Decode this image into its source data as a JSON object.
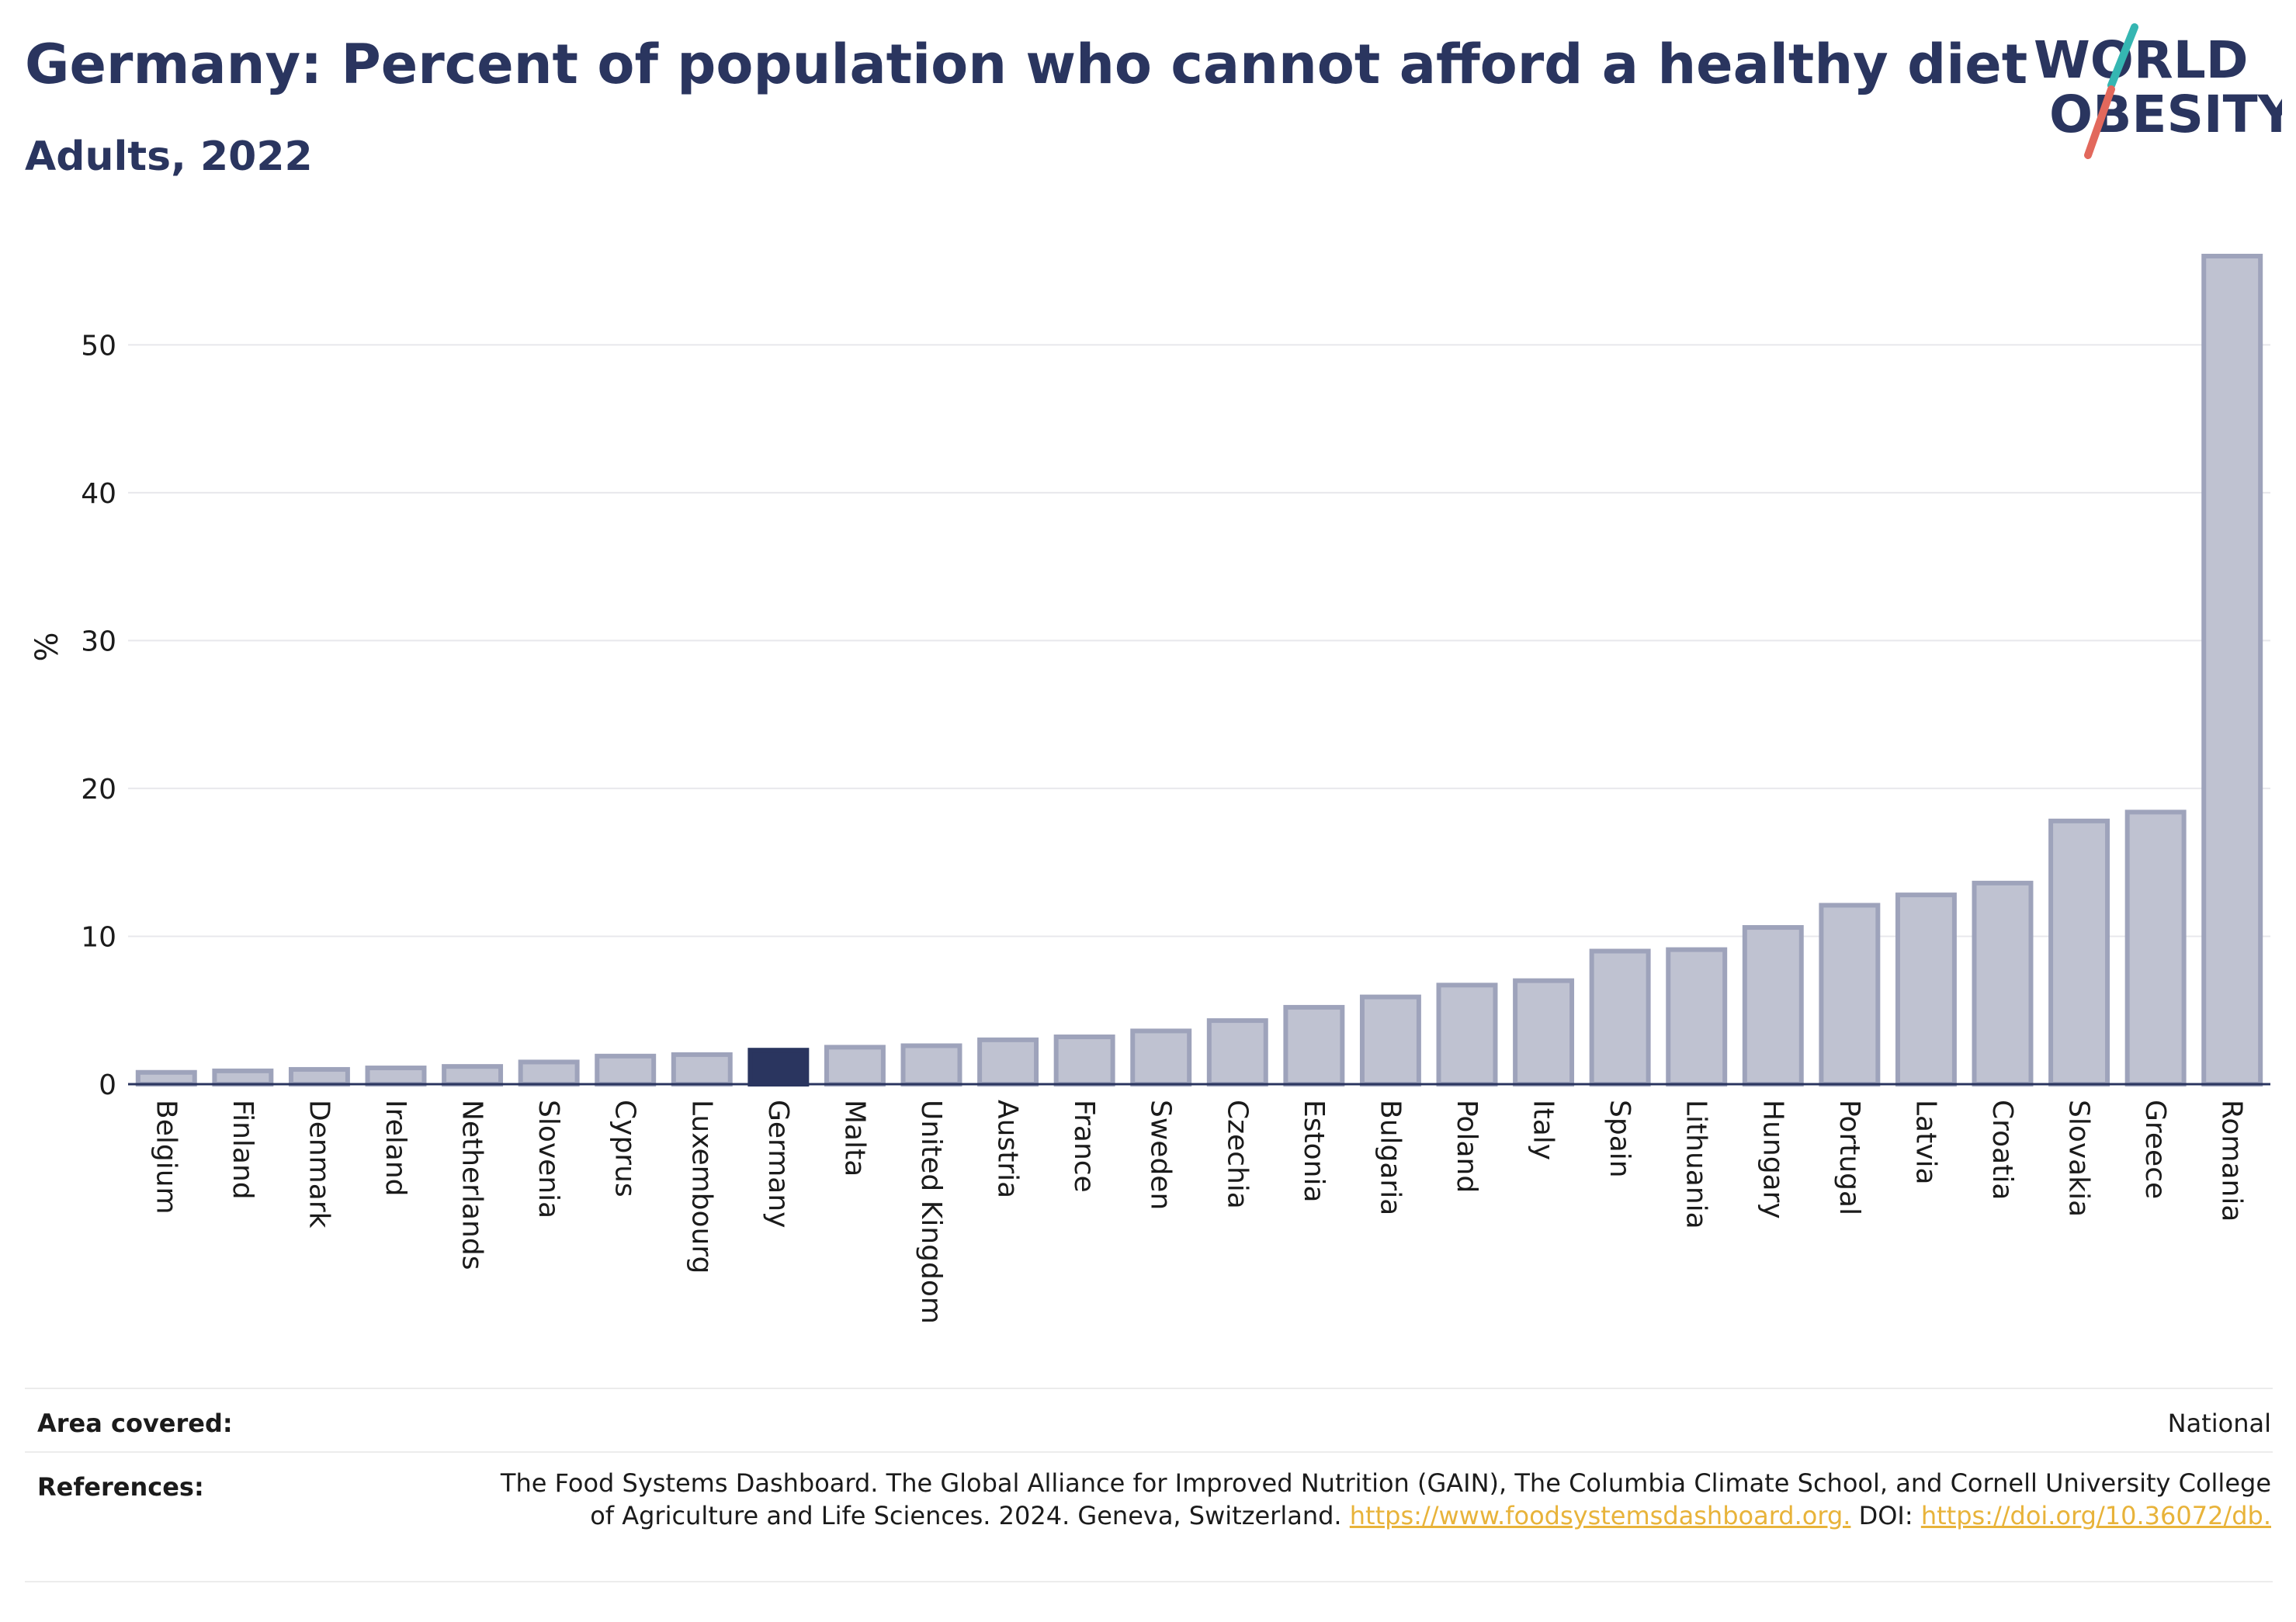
{
  "header": {
    "title": "Germany: Percent of population who cannot afford a healthy diet",
    "subtitle": "Adults, 2022"
  },
  "logo": {
    "line1": "WORLD",
    "line2": "OBESITY",
    "icon": "world-obesity-logo"
  },
  "colors": {
    "highlight": "#2a355f",
    "bar_fill": "#bfc2d1",
    "bar_stroke": "#9ea3bb",
    "link": "#e8b33a"
  },
  "chart_data": {
    "type": "bar",
    "title": "Germany: Percent of population who cannot afford a healthy diet",
    "subtitle": "Adults, 2022",
    "xlabel": "",
    "ylabel": "%",
    "ylim": [
      0,
      56
    ],
    "yticks": [
      0,
      10,
      20,
      30,
      40,
      50
    ],
    "grid": true,
    "legend": "none",
    "highlight": "Germany",
    "categories": [
      "Belgium",
      "Finland",
      "Denmark",
      "Ireland",
      "Netherlands",
      "Slovenia",
      "Cyprus",
      "Luxembourg",
      "Germany",
      "Malta",
      "United Kingdom",
      "Austria",
      "France",
      "Sweden",
      "Czechia",
      "Estonia",
      "Bulgaria",
      "Poland",
      "Italy",
      "Spain",
      "Lithuania",
      "Hungary",
      "Portugal",
      "Latvia",
      "Croatia",
      "Slovakia",
      "Greece",
      "Romania"
    ],
    "values": [
      0.8,
      0.9,
      1.0,
      1.1,
      1.2,
      1.5,
      1.9,
      2.0,
      2.3,
      2.5,
      2.6,
      3.0,
      3.2,
      3.6,
      4.3,
      5.2,
      5.9,
      6.7,
      7.0,
      9.0,
      9.1,
      10.6,
      12.1,
      12.8,
      13.6,
      17.8,
      18.4,
      56.0
    ]
  },
  "footer": {
    "area_label": "Area covered:",
    "area_value": "National",
    "references_label": "References:",
    "references_text_1": "The Food Systems Dashboard. The Global Alliance for Improved Nutrition (GAIN), The Columbia Climate School, and Cornell University College of Agriculture and Life Sciences. 2024. Geneva, Switzerland.",
    "references_link_1": "https://www.foodsystemsdashboard.org.",
    "references_text_2": "DOI:",
    "references_link_2": "https://doi.org/10.36072/db."
  }
}
